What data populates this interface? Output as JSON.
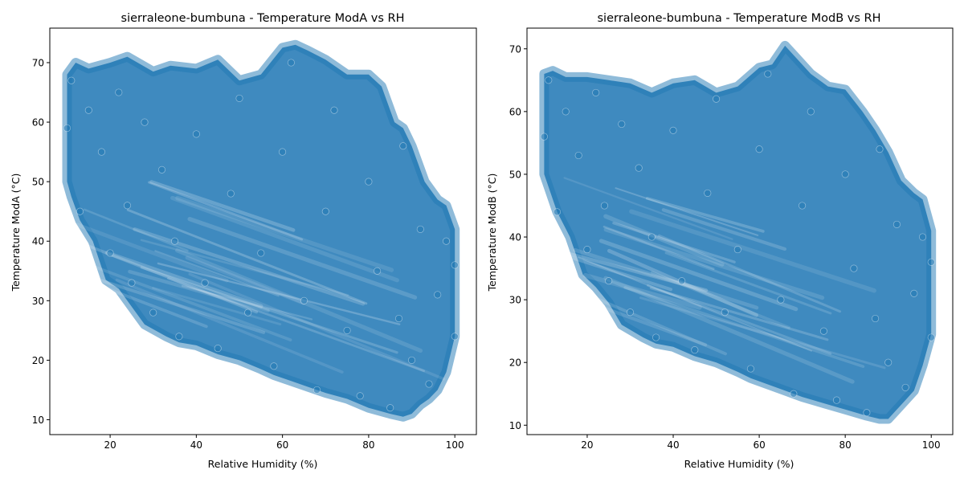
{
  "chart_data": [
    {
      "type": "scatter",
      "title": "sierraleone-bumbuna - Temperature ModA vs RH",
      "xlabel": "Relative Humidity (%)",
      "ylabel": "Temperature ModA (°C)",
      "xlim": [
        6,
        105
      ],
      "ylim": [
        7.5,
        75.8
      ],
      "xticks": [
        20,
        40,
        60,
        80,
        100
      ],
      "yticks": [
        10,
        20,
        30,
        40,
        50,
        60,
        70
      ],
      "grid": false,
      "marker_color": "#1f77b4",
      "marker_alpha": 0.5,
      "series": [
        {
          "envelope_x": [
            10,
            12,
            15,
            20,
            24,
            30,
            34,
            40,
            45,
            50,
            55,
            60,
            63,
            66,
            70,
            75,
            80,
            83,
            86,
            88,
            90,
            93,
            96,
            98,
            100,
            100,
            98,
            96,
            94,
            92,
            90,
            88,
            85,
            80,
            75,
            70,
            66,
            62,
            58,
            55,
            50,
            45,
            40,
            36,
            33,
            28,
            25,
            22,
            19,
            16,
            13,
            11,
            10
          ],
          "envelope_y": [
            68,
            70,
            69,
            70,
            71,
            68.5,
            69.5,
            69,
            70.5,
            67,
            68,
            72.5,
            73,
            72,
            70.5,
            68,
            68,
            66,
            60,
            59,
            56,
            50,
            47,
            46,
            42,
            24,
            18,
            15,
            13.5,
            12.5,
            11,
            10.5,
            11,
            12,
            13.5,
            14.5,
            15.5,
            16.5,
            17.5,
            18.5,
            20,
            21,
            22.5,
            23,
            24,
            26,
            29,
            32,
            33.5,
            40,
            43.5,
            47.5,
            50
          ],
          "points": [
            [
              10,
              59
            ],
            [
              11,
              67
            ],
            [
              13,
              45
            ],
            [
              15,
              62
            ],
            [
              18,
              55
            ],
            [
              20,
              38
            ],
            [
              22,
              65
            ],
            [
              24,
              46
            ],
            [
              25,
              33
            ],
            [
              28,
              60
            ],
            [
              30,
              28
            ],
            [
              32,
              52
            ],
            [
              35,
              40
            ],
            [
              36,
              24
            ],
            [
              40,
              58
            ],
            [
              42,
              33
            ],
            [
              45,
              22
            ],
            [
              48,
              48
            ],
            [
              50,
              64
            ],
            [
              52,
              28
            ],
            [
              55,
              38
            ],
            [
              58,
              19
            ],
            [
              60,
              55
            ],
            [
              62,
              70
            ],
            [
              65,
              30
            ],
            [
              68,
              15
            ],
            [
              70,
              45
            ],
            [
              72,
              62
            ],
            [
              75,
              25
            ],
            [
              78,
              14
            ],
            [
              80,
              50
            ],
            [
              82,
              35
            ],
            [
              85,
              12
            ],
            [
              87,
              27
            ],
            [
              88,
              56
            ],
            [
              90,
              20
            ],
            [
              92,
              42
            ],
            [
              94,
              16
            ],
            [
              96,
              31
            ],
            [
              98,
              40
            ],
            [
              100,
              24
            ],
            [
              100,
              36
            ]
          ]
        }
      ]
    },
    {
      "type": "scatter",
      "title": "sierraleone-bumbuna - Temperature ModB vs RH",
      "xlabel": "Relative Humidity (%)",
      "ylabel": "Temperature ModB (°C)",
      "xlim": [
        6,
        105
      ],
      "ylim": [
        8.5,
        73.3
      ],
      "xticks": [
        20,
        40,
        60,
        80,
        100
      ],
      "yticks": [
        10,
        20,
        30,
        40,
        50,
        60,
        70
      ],
      "grid": false,
      "marker_color": "#1f77b4",
      "marker_alpha": 0.5,
      "series": [
        {
          "envelope_x": [
            10,
            12,
            15,
            20,
            25,
            30,
            35,
            40,
            45,
            50,
            55,
            60,
            63,
            66,
            68,
            72,
            76,
            80,
            84,
            87,
            90,
            93,
            96,
            98,
            100,
            100,
            98,
            96,
            94,
            92,
            90,
            88,
            85,
            80,
            75,
            70,
            66,
            62,
            58,
            55,
            50,
            45,
            40,
            36,
            33,
            28,
            25,
            22,
            19,
            16,
            13,
            11,
            10
          ],
          "envelope_y": [
            66,
            66.5,
            65.5,
            65.5,
            65,
            64.5,
            63,
            64.5,
            65,
            63,
            64,
            67,
            67.5,
            70.5,
            69,
            66,
            64,
            63.5,
            60,
            57,
            53.5,
            49,
            47,
            46,
            41,
            24.5,
            19.5,
            15.5,
            14,
            12.5,
            11,
            11,
            11.5,
            12.5,
            13.5,
            14.5,
            15.5,
            16.5,
            17.5,
            18.5,
            20,
            21,
            22.5,
            23,
            24,
            26,
            29.5,
            32,
            34,
            40,
            44,
            48,
            50
          ],
          "points": [
            [
              10,
              56
            ],
            [
              11,
              65
            ],
            [
              13,
              44
            ],
            [
              15,
              60
            ],
            [
              18,
              53
            ],
            [
              20,
              38
            ],
            [
              22,
              63
            ],
            [
              24,
              45
            ],
            [
              25,
              33
            ],
            [
              28,
              58
            ],
            [
              30,
              28
            ],
            [
              32,
              51
            ],
            [
              35,
              40
            ],
            [
              36,
              24
            ],
            [
              40,
              57
            ],
            [
              42,
              33
            ],
            [
              45,
              22
            ],
            [
              48,
              47
            ],
            [
              50,
              62
            ],
            [
              52,
              28
            ],
            [
              55,
              38
            ],
            [
              58,
              19
            ],
            [
              60,
              54
            ],
            [
              62,
              66
            ],
            [
              65,
              30
            ],
            [
              68,
              15
            ],
            [
              70,
              45
            ],
            [
              72,
              60
            ],
            [
              75,
              25
            ],
            [
              78,
              14
            ],
            [
              80,
              50
            ],
            [
              82,
              35
            ],
            [
              85,
              12
            ],
            [
              87,
              27
            ],
            [
              88,
              54
            ],
            [
              90,
              20
            ],
            [
              92,
              42
            ],
            [
              94,
              16
            ],
            [
              96,
              31
            ],
            [
              98,
              40
            ],
            [
              100,
              24
            ],
            [
              100,
              36
            ]
          ]
        }
      ]
    }
  ]
}
